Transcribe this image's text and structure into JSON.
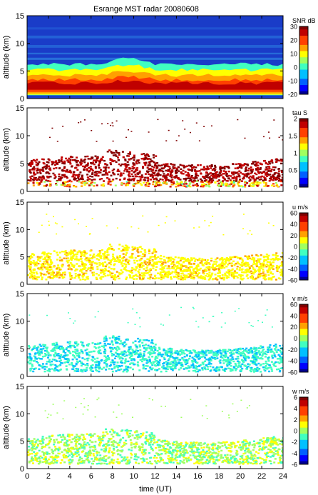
{
  "chart_data": {
    "type": "heatmap",
    "title": "Esrange MST radar 20080608",
    "xlabel": "time (UT)",
    "xlim": [
      0,
      24
    ],
    "x_ticks": [
      "0",
      "2",
      "4",
      "6",
      "8",
      "10",
      "12",
      "14",
      "16",
      "18",
      "20",
      "22",
      "24"
    ],
    "ylabel": "altitude (km)",
    "ylim": [
      0,
      15
    ],
    "y_ticks": [
      "0",
      "5",
      "10",
      "15"
    ],
    "panels": [
      {
        "key": "snr",
        "colorbar_label": "SNR dB",
        "clim": [
          -20,
          30
        ],
        "colorbar_ticks": [
          "30",
          "20",
          "10",
          "0",
          "-10",
          "-20"
        ],
        "background": "filled"
      },
      {
        "key": "tau",
        "colorbar_label": "tau S",
        "clim": [
          0,
          2
        ],
        "colorbar_ticks": [
          "2",
          "1.5",
          "1",
          "0.5",
          "0"
        ]
      },
      {
        "key": "u",
        "colorbar_label": "u m/s",
        "clim": [
          -60,
          60
        ],
        "colorbar_ticks": [
          "60",
          "40",
          "20",
          "0",
          "-20",
          "-40",
          "-60"
        ]
      },
      {
        "key": "v",
        "colorbar_label": "v m/s",
        "clim": [
          -60,
          60
        ],
        "colorbar_ticks": [
          "60",
          "40",
          "20",
          "0",
          "-20",
          "-40",
          "-60"
        ]
      },
      {
        "key": "w",
        "colorbar_label": "w m/s",
        "clim": [
          -6,
          6
        ],
        "colorbar_ticks": [
          "6",
          "4",
          "2",
          "0",
          "-2",
          "-4",
          "-6"
        ]
      }
    ],
    "colormap": [
      "#000090",
      "#0000ff",
      "#0060ff",
      "#00c0ff",
      "#40ffc0",
      "#a0ff60",
      "#ffff00",
      "#ffa000",
      "#ff4000",
      "#c00000",
      "#800000"
    ]
  }
}
